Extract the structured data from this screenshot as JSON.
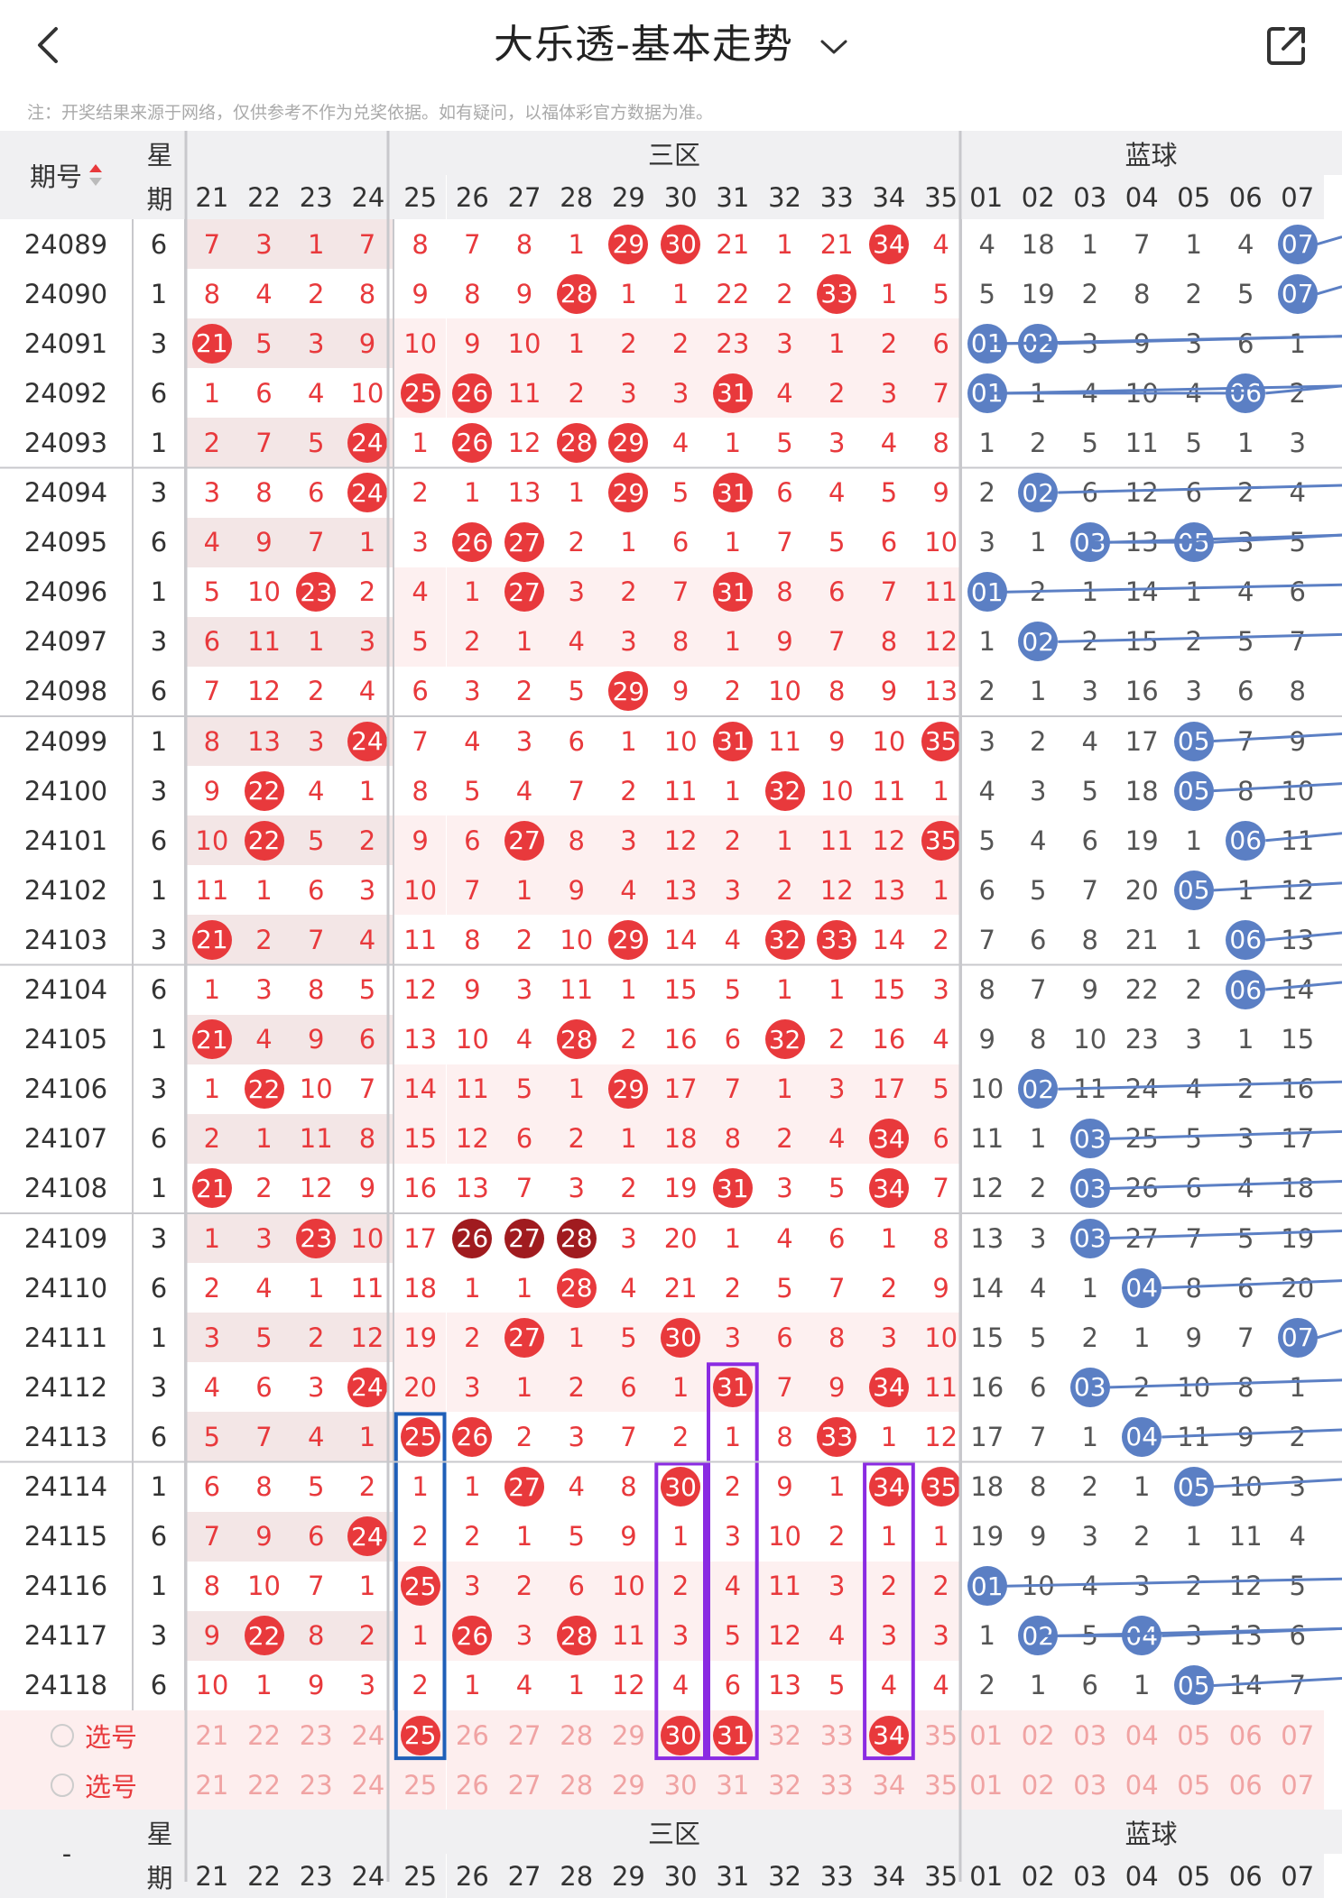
{
  "header": {
    "title": "大乐透-基本走势",
    "note": "注：开奖结果来源于网络，仅供参考不作为兑奖依据。如有疑问，以福体彩官方数据为准。"
  },
  "table": {
    "col_issue": "期号",
    "col_week_top": "星",
    "col_week_bottom": "期",
    "zone3_label": "三区",
    "blue_label": "蓝球",
    "front_cols": [
      "21",
      "22",
      "23",
      "24",
      "25",
      "26",
      "27",
      "28",
      "29",
      "30",
      "31",
      "32",
      "33",
      "34",
      "35"
    ],
    "blue_cols": [
      "01",
      "02",
      "03",
      "04",
      "05",
      "06",
      "07"
    ],
    "rows": [
      {
        "issue": "24089",
        "week": "6",
        "front": [
          7,
          3,
          1,
          7,
          8,
          7,
          8,
          1,
          "29",
          "30",
          21,
          1,
          21,
          "34",
          4
        ],
        "blue": [
          4,
          18,
          1,
          7,
          1,
          4,
          "07"
        ]
      },
      {
        "issue": "24090",
        "week": "1",
        "front": [
          8,
          4,
          2,
          8,
          9,
          8,
          9,
          "28",
          1,
          1,
          22,
          2,
          "33",
          1,
          5
        ],
        "blue": [
          5,
          19,
          2,
          8,
          2,
          5,
          "07"
        ]
      },
      {
        "issue": "24091",
        "week": "3",
        "front": [
          "21",
          5,
          3,
          9,
          10,
          9,
          10,
          1,
          2,
          2,
          23,
          3,
          1,
          2,
          6
        ],
        "blue": [
          "01",
          "02",
          3,
          9,
          3,
          6,
          1
        ]
      },
      {
        "issue": "24092",
        "week": "6",
        "front": [
          1,
          6,
          4,
          10,
          "25",
          "26",
          11,
          2,
          3,
          3,
          "31",
          4,
          2,
          3,
          7
        ],
        "blue": [
          "01",
          1,
          4,
          10,
          4,
          "06",
          2
        ]
      },
      {
        "issue": "24093",
        "week": "1",
        "front": [
          2,
          7,
          5,
          "24",
          1,
          "26",
          12,
          "28",
          "29",
          4,
          1,
          5,
          3,
          4,
          8
        ],
        "blue": [
          1,
          2,
          5,
          11,
          5,
          1,
          3
        ]
      },
      {
        "issue": "24094",
        "week": "3",
        "front": [
          3,
          8,
          6,
          "24",
          2,
          1,
          13,
          1,
          "29",
          5,
          "31",
          6,
          4,
          5,
          9
        ],
        "blue": [
          2,
          "02",
          6,
          12,
          6,
          2,
          4
        ]
      },
      {
        "issue": "24095",
        "week": "6",
        "front": [
          4,
          9,
          7,
          1,
          3,
          "26",
          "27",
          2,
          1,
          6,
          1,
          7,
          5,
          6,
          10
        ],
        "blue": [
          3,
          1,
          "03",
          13,
          "05",
          3,
          5
        ]
      },
      {
        "issue": "24096",
        "week": "1",
        "front": [
          5,
          10,
          "23",
          2,
          4,
          1,
          "27",
          3,
          2,
          7,
          "31",
          8,
          6,
          7,
          11
        ],
        "blue": [
          "01",
          2,
          1,
          14,
          1,
          4,
          6
        ]
      },
      {
        "issue": "24097",
        "week": "3",
        "front": [
          6,
          11,
          1,
          3,
          5,
          2,
          1,
          4,
          3,
          8,
          1,
          9,
          7,
          8,
          12
        ],
        "blue": [
          1,
          "02",
          2,
          15,
          2,
          5,
          7
        ]
      },
      {
        "issue": "24098",
        "week": "6",
        "front": [
          7,
          12,
          2,
          4,
          6,
          3,
          2,
          5,
          "29",
          9,
          2,
          10,
          8,
          9,
          13
        ],
        "blue": [
          2,
          1,
          3,
          16,
          3,
          6,
          8
        ]
      },
      {
        "issue": "24099",
        "week": "1",
        "front": [
          8,
          13,
          3,
          "24",
          7,
          4,
          3,
          6,
          1,
          10,
          "31",
          11,
          9,
          10,
          "35"
        ],
        "blue": [
          3,
          2,
          4,
          17,
          "05",
          7,
          9
        ]
      },
      {
        "issue": "24100",
        "week": "3",
        "front": [
          9,
          "22",
          4,
          1,
          8,
          5,
          4,
          7,
          2,
          11,
          1,
          "32",
          10,
          11,
          1
        ],
        "blue": [
          4,
          3,
          5,
          18,
          "05",
          8,
          10
        ]
      },
      {
        "issue": "24101",
        "week": "6",
        "front": [
          10,
          "22",
          5,
          2,
          9,
          6,
          "27",
          8,
          3,
          12,
          2,
          1,
          11,
          12,
          "35"
        ],
        "blue": [
          5,
          4,
          6,
          19,
          1,
          "06",
          11
        ]
      },
      {
        "issue": "24102",
        "week": "1",
        "front": [
          11,
          1,
          6,
          3,
          10,
          7,
          1,
          9,
          4,
          13,
          3,
          2,
          12,
          13,
          1
        ],
        "blue": [
          6,
          5,
          7,
          20,
          "05",
          1,
          12
        ]
      },
      {
        "issue": "24103",
        "week": "3",
        "front": [
          "21",
          2,
          7,
          4,
          11,
          8,
          2,
          10,
          "29",
          14,
          4,
          "32",
          "33",
          14,
          2
        ],
        "blue": [
          7,
          6,
          8,
          21,
          1,
          "06",
          13
        ]
      },
      {
        "issue": "24104",
        "week": "6",
        "front": [
          1,
          3,
          8,
          5,
          12,
          9,
          3,
          11,
          1,
          15,
          5,
          1,
          1,
          15,
          3
        ],
        "blue": [
          8,
          7,
          9,
          22,
          2,
          "06",
          14
        ]
      },
      {
        "issue": "24105",
        "week": "1",
        "front": [
          "21",
          4,
          9,
          6,
          13,
          10,
          4,
          "28",
          2,
          16,
          6,
          "32",
          2,
          16,
          4
        ],
        "blue": [
          9,
          8,
          10,
          23,
          3,
          1,
          15
        ]
      },
      {
        "issue": "24106",
        "week": "3",
        "front": [
          1,
          "22",
          10,
          7,
          14,
          11,
          5,
          1,
          "29",
          17,
          7,
          1,
          3,
          17,
          5
        ],
        "blue": [
          10,
          "02",
          11,
          24,
          4,
          2,
          16
        ]
      },
      {
        "issue": "24107",
        "week": "6",
        "front": [
          2,
          1,
          11,
          8,
          15,
          12,
          6,
          2,
          1,
          18,
          8,
          2,
          4,
          "34",
          6
        ],
        "blue": [
          11,
          1,
          "03",
          25,
          5,
          3,
          17
        ]
      },
      {
        "issue": "24108",
        "week": "1",
        "front": [
          "21",
          2,
          12,
          9,
          16,
          13,
          7,
          3,
          2,
          19,
          "31",
          3,
          5,
          "34",
          7
        ],
        "blue": [
          12,
          2,
          "03",
          26,
          6,
          4,
          18
        ]
      },
      {
        "issue": "24109",
        "week": "3",
        "front": [
          1,
          3,
          "23",
          10,
          17,
          "26",
          "27",
          "28",
          3,
          20,
          1,
          4,
          6,
          1,
          8
        ],
        "blue": [
          13,
          3,
          "03",
          27,
          7,
          5,
          19
        ]
      },
      {
        "issue": "24110",
        "week": "6",
        "front": [
          2,
          4,
          1,
          11,
          18,
          1,
          1,
          "28",
          4,
          21,
          2,
          5,
          7,
          2,
          9
        ],
        "blue": [
          14,
          4,
          1,
          "04",
          8,
          6,
          20
        ]
      },
      {
        "issue": "24111",
        "week": "1",
        "front": [
          3,
          5,
          2,
          12,
          19,
          2,
          "27",
          1,
          5,
          "30",
          3,
          6,
          8,
          3,
          10
        ],
        "blue": [
          15,
          5,
          2,
          1,
          9,
          7,
          "07"
        ]
      },
      {
        "issue": "24112",
        "week": "3",
        "front": [
          4,
          6,
          3,
          "24",
          20,
          3,
          1,
          2,
          6,
          1,
          "31",
          7,
          9,
          "34",
          11
        ],
        "blue": [
          16,
          6,
          "03",
          2,
          10,
          8,
          1
        ]
      },
      {
        "issue": "24113",
        "week": "6",
        "front": [
          5,
          7,
          4,
          1,
          "25",
          "26",
          2,
          3,
          7,
          2,
          1,
          8,
          "33",
          1,
          12
        ],
        "blue": [
          17,
          7,
          1,
          "04",
          11,
          9,
          2
        ]
      },
      {
        "issue": "24114",
        "week": "1",
        "front": [
          6,
          8,
          5,
          2,
          1,
          1,
          "27",
          4,
          8,
          "30",
          2,
          9,
          1,
          "34",
          "35"
        ],
        "blue": [
          18,
          8,
          2,
          1,
          "05",
          10,
          3
        ]
      },
      {
        "issue": "24115",
        "week": "6",
        "front": [
          7,
          9,
          6,
          "24",
          2,
          2,
          1,
          5,
          9,
          1,
          3,
          10,
          2,
          1,
          1
        ],
        "blue": [
          19,
          9,
          3,
          2,
          1,
          11,
          4
        ]
      },
      {
        "issue": "24116",
        "week": "1",
        "front": [
          8,
          10,
          7,
          1,
          "25",
          3,
          2,
          6,
          10,
          2,
          4,
          11,
          3,
          2,
          2
        ],
        "blue": [
          "01",
          10,
          4,
          3,
          2,
          12,
          5
        ]
      },
      {
        "issue": "24117",
        "week": "3",
        "front": [
          9,
          "22",
          8,
          2,
          1,
          "26",
          3,
          "28",
          11,
          3,
          5,
          12,
          4,
          3,
          3
        ],
        "blue": [
          1,
          "02",
          5,
          "04",
          3,
          13,
          6
        ]
      },
      {
        "issue": "24118",
        "week": "6",
        "front": [
          10,
          1,
          9,
          3,
          2,
          1,
          4,
          1,
          12,
          4,
          6,
          13,
          5,
          4,
          4
        ],
        "blue": [
          2,
          1,
          6,
          1,
          "05",
          14,
          7
        ]
      }
    ],
    "pick_label": "选号",
    "pick1_selected": [
      "25",
      "30",
      "31",
      "34"
    ],
    "footer_dash": "-"
  },
  "colors": {
    "red": "#e8393c",
    "dark_red": "#a01b1f",
    "blue": "#5b7fc4",
    "box_blue": "#1f5fb8",
    "box_purple": "#8a2be2"
  },
  "icons": {
    "back": "chevron-left-icon",
    "share": "share-external-icon",
    "caret": "chevron-down-icon",
    "sort": "sort-arrows-icon",
    "radio": "radio-circle-icon"
  }
}
